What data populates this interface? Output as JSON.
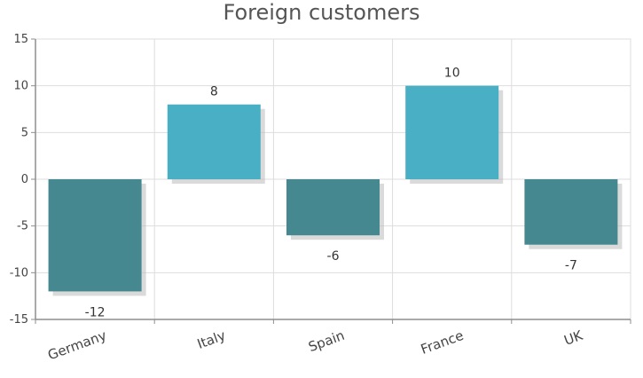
{
  "chart_data": {
    "type": "bar",
    "title": "Foreign customers",
    "categories": [
      "Germany",
      "Italy",
      "Spain",
      "France",
      "UK"
    ],
    "values": [
      -12,
      8,
      -6,
      10,
      -7
    ],
    "ylim": [
      -15,
      15
    ],
    "yticks": [
      15,
      10,
      5,
      0,
      -5,
      -10,
      -15
    ],
    "xlabel": "",
    "ylabel": "",
    "grid": true,
    "colors": {
      "positive": "#48AFC4",
      "negative": "#468890",
      "grid": "#DDDDDD",
      "axis": "#8E8E8E",
      "shadow": "#BBBBBB"
    }
  }
}
